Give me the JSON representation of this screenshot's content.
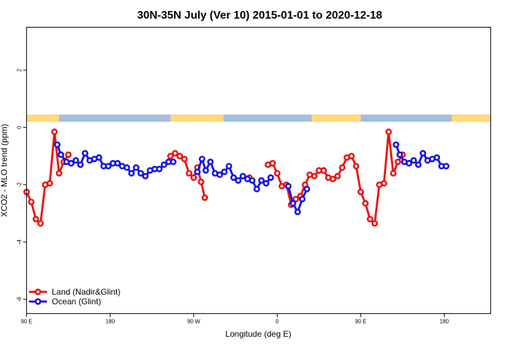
{
  "chart_data": {
    "type": "line",
    "title": "30N-35N July (Ver 10)   2015-01-01 to 2020-12-18",
    "xlabel": "Longitude (deg E)",
    "ylabel": "XCO2 - MLO trend (ppm)",
    "xlim": [
      90,
      590
    ],
    "ylim": [
      -6.5,
      3.5
    ],
    "x_ticks": [
      {
        "value": 90,
        "label": "90 E"
      },
      {
        "value": 180,
        "label": "180"
      },
      {
        "value": 270,
        "label": "90 W"
      },
      {
        "value": 360,
        "label": "0"
      },
      {
        "value": 450,
        "label": "90 E"
      },
      {
        "value": 540,
        "label": "180"
      }
    ],
    "y_ticks": [
      {
        "value": 2,
        "label": "2"
      },
      {
        "value": 0,
        "label": "0"
      },
      {
        "value": -2,
        "label": "-2"
      },
      {
        "value": -4,
        "label": "-4"
      },
      {
        "value": -6,
        "label": "-6"
      }
    ],
    "legend_position": "bottom-left",
    "land_mask": {
      "y_range": [
        0.2,
        0.45
      ],
      "land_color": "#FFD97A",
      "ocean_color": "#A4BEDE",
      "land_segments": [
        [
          90,
          125
        ],
        [
          245,
          302
        ],
        [
          397,
          450
        ],
        [
          548,
          590
        ]
      ]
    },
    "series": [
      {
        "name": "Land (Nadir&Glint)",
        "color": "#EE1111",
        "segments": [
          [
            [
              90,
              -2.25
            ],
            [
              95,
              -2.6
            ],
            [
              100,
              -3.2
            ],
            [
              105,
              -3.35
            ],
            [
              110,
              -2.0
            ],
            [
              115,
              -1.95
            ],
            [
              120,
              -0.15
            ],
            [
              125,
              -1.6
            ],
            [
              130,
              -1.2
            ],
            [
              135,
              -0.95
            ]
          ],
          [
            [
              245,
              -1.0
            ],
            [
              250,
              -0.9
            ],
            [
              255,
              -1.0
            ],
            [
              260,
              -1.1
            ],
            [
              265,
              -1.6
            ],
            [
              270,
              -1.75
            ],
            [
              274,
              -1.4
            ],
            [
              278,
              -1.9
            ],
            [
              282,
              -2.45
            ]
          ],
          [
            [
              330,
              -1.75
            ]
          ],
          [
            [
              350,
              -1.3
            ],
            [
              355,
              -1.25
            ],
            [
              360,
              -1.6
            ],
            [
              365,
              -2.05
            ],
            [
              370,
              -2.0
            ],
            [
              375,
              -2.7
            ],
            [
              380,
              -2.5
            ],
            [
              385,
              -2.4
            ],
            [
              390,
              -2.0
            ],
            [
              395,
              -1.65
            ],
            [
              400,
              -1.7
            ],
            [
              405,
              -1.5
            ],
            [
              410,
              -1.5
            ],
            [
              415,
              -1.75
            ],
            [
              420,
              -1.8
            ],
            [
              425,
              -1.7
            ],
            [
              430,
              -1.4
            ],
            [
              435,
              -1.05
            ],
            [
              440,
              -1.0
            ],
            [
              445,
              -1.35
            ],
            [
              450,
              -2.25
            ],
            [
              455,
              -2.65
            ],
            [
              460,
              -3.2
            ],
            [
              465,
              -3.35
            ],
            [
              470,
              -2.0
            ],
            [
              475,
              -1.95
            ],
            [
              480,
              -0.15
            ],
            [
              485,
              -1.6
            ],
            [
              490,
              -1.2
            ],
            [
              495,
              -0.95
            ]
          ]
        ]
      },
      {
        "name": "Ocean (Glint)",
        "color": "#1111EE",
        "segments": [
          [
            [
              123,
              -0.6
            ],
            [
              127,
              -0.95
            ],
            [
              133,
              -1.2
            ],
            [
              138,
              -1.25
            ],
            [
              143,
              -1.15
            ],
            [
              148,
              -1.3
            ],
            [
              153,
              -0.9
            ],
            [
              158,
              -1.15
            ],
            [
              163,
              -1.1
            ],
            [
              168,
              -1.05
            ],
            [
              173,
              -1.35
            ],
            [
              178,
              -1.35
            ],
            [
              183,
              -1.25
            ],
            [
              188,
              -1.25
            ],
            [
              193,
              -1.35
            ],
            [
              198,
              -1.4
            ],
            [
              203,
              -1.6
            ],
            [
              208,
              -1.4
            ],
            [
              213,
              -1.6
            ],
            [
              218,
              -1.7
            ],
            [
              223,
              -1.5
            ],
            [
              228,
              -1.45
            ],
            [
              233,
              -1.45
            ],
            [
              238,
              -1.3
            ],
            [
              243,
              -1.2
            ],
            [
              248,
              -1.2
            ]
          ],
          [
            [
              274,
              -1.55
            ],
            [
              279,
              -1.1
            ],
            [
              283,
              -1.5
            ],
            [
              288,
              -1.2
            ],
            [
              293,
              -1.6
            ],
            [
              298,
              -1.65
            ],
            [
              303,
              -1.55
            ],
            [
              308,
              -1.35
            ],
            [
              313,
              -1.75
            ],
            [
              318,
              -1.85
            ],
            [
              323,
              -1.7
            ],
            [
              328,
              -1.8
            ],
            [
              333,
              -1.85
            ],
            [
              338,
              -2.15
            ],
            [
              343,
              -1.85
            ],
            [
              348,
              -1.95
            ],
            [
              353,
              -1.75
            ]
          ],
          [
            [
              372,
              -2.05
            ],
            [
              377,
              -2.65
            ],
            [
              382,
              -2.95
            ],
            [
              387,
              -2.5
            ],
            [
              392,
              -2.15
            ]
          ],
          [
            [
              488,
              -0.6
            ],
            [
              492,
              -0.95
            ],
            [
              497,
              -1.2
            ],
            [
              502,
              -1.25
            ],
            [
              507,
              -1.15
            ],
            [
              512,
              -1.3
            ],
            [
              517,
              -0.9
            ],
            [
              522,
              -1.15
            ],
            [
              527,
              -1.1
            ],
            [
              532,
              -1.05
            ],
            [
              537,
              -1.35
            ],
            [
              542,
              -1.35
            ]
          ]
        ]
      }
    ]
  }
}
